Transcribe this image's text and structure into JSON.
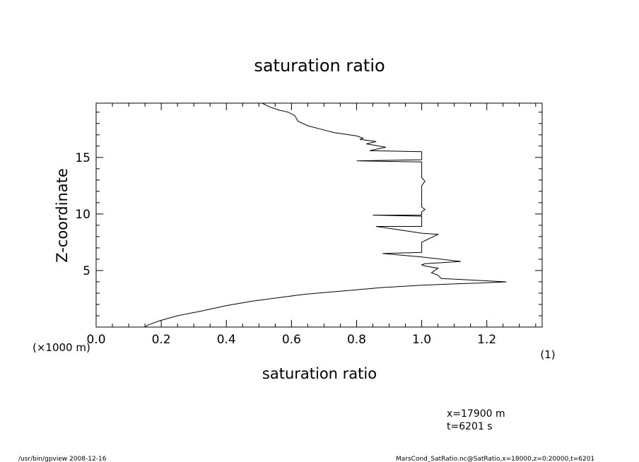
{
  "chart_data": {
    "type": "line",
    "title": "saturation ratio",
    "xlabel": "saturation ratio",
    "ylabel": "Z-coordinate",
    "xunit": "(1)",
    "yunit": "(×1000 m)",
    "xlim": [
      0.0,
      1.37
    ],
    "ylim": [
      0,
      19.8
    ],
    "xticks": [
      "0.0",
      "0.2",
      "0.4",
      "0.6",
      "0.8",
      "1.0",
      "1.2"
    ],
    "yticks": [
      "5",
      "10",
      "15"
    ],
    "grid": false,
    "series": [
      {
        "x": [
          0.15,
          0.16,
          0.2,
          0.25,
          0.32,
          0.4,
          0.48,
          0.56,
          0.64,
          0.72,
          0.8,
          0.88,
          0.94,
          1.0,
          1.08,
          1.18,
          1.26,
          1.06,
          1.05,
          1.03,
          1.05,
          1.01,
          1.0,
          1.01,
          1.12,
          1.0,
          0.88,
          1.0,
          1.0,
          1.05,
          1.0,
          0.86,
          1.0,
          1.0,
          0.85,
          1.0,
          1.0,
          1.01,
          1.0,
          1.0,
          1.01,
          1.0,
          1.0,
          0.8,
          1.0,
          1.0,
          0.84,
          0.89,
          0.83,
          0.86,
          0.81,
          0.82,
          0.8,
          0.73,
          0.69,
          0.65,
          0.62,
          0.61,
          0.59,
          0.56,
          0.53,
          0.51
        ],
        "y": [
          0.0,
          0.2,
          0.6,
          1.0,
          1.4,
          1.9,
          2.3,
          2.6,
          2.9,
          3.1,
          3.3,
          3.5,
          3.6,
          3.7,
          3.8,
          3.9,
          4.0,
          4.3,
          4.6,
          4.8,
          5.2,
          5.4,
          5.5,
          5.6,
          5.8,
          6.2,
          6.5,
          6.6,
          7.5,
          8.2,
          8.3,
          8.9,
          8.9,
          9.8,
          9.9,
          9.9,
          10.2,
          10.4,
          10.6,
          12.5,
          12.9,
          13.2,
          14.6,
          14.7,
          14.8,
          15.5,
          15.6,
          15.9,
          16.2,
          16.4,
          16.6,
          16.7,
          16.9,
          17.2,
          17.5,
          17.8,
          18.2,
          18.7,
          19.0,
          19.2,
          19.5,
          19.8
        ]
      }
    ]
  },
  "footer": {
    "position_info_x": "x=17900  m",
    "position_info_t": "t=6201  s",
    "program_date": "/usr/bin/gpview   2008-12-16",
    "source": "MarsCond_SatRatio.nc@SatRatio,x=18000,z=0:20000,t=6201"
  }
}
